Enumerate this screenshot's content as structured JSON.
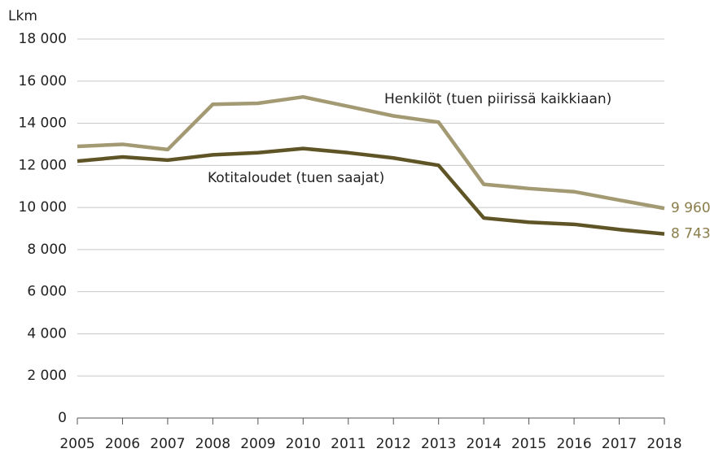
{
  "chart_data": {
    "type": "line",
    "y_label": "Lkm",
    "categories": [
      "2005",
      "2006",
      "2007",
      "2008",
      "2009",
      "2010",
      "2011",
      "2012",
      "2013",
      "2014",
      "2015",
      "2016",
      "2017",
      "2018"
    ],
    "series": [
      {
        "name": "Henkilöt (tuen piirissä kaikkiaan)",
        "color": "#a39a73",
        "values": [
          12900,
          13000,
          12750,
          14900,
          14950,
          15250,
          14800,
          14350,
          14050,
          11100,
          10900,
          10750,
          10350,
          9960
        ],
        "value_labels": [
          null,
          null,
          null,
          null,
          null,
          null,
          null,
          null,
          null,
          null,
          null,
          null,
          null,
          "9 960"
        ]
      },
      {
        "name": "Kotitaloudet (tuen saajat)",
        "color": "#5e5426",
        "values": [
          12200,
          12400,
          12250,
          12500,
          12600,
          12800,
          12600,
          12350,
          12000,
          9500,
          9300,
          9200,
          8950,
          8743
        ],
        "value_labels": [
          null,
          null,
          null,
          null,
          null,
          null,
          null,
          null,
          null,
          null,
          null,
          null,
          null,
          "8 743"
        ]
      }
    ],
    "ylim": [
      0,
      18000
    ],
    "yticks": [
      0,
      {
        "value": 2000,
        "label": "2 000"
      },
      {
        "value": 4000,
        "label": "4 000"
      },
      {
        "value": 6000,
        "label": "6 000"
      },
      {
        "value": 8000,
        "label": "8 000"
      },
      {
        "value": 10000,
        "label": "10 000"
      },
      {
        "value": 12000,
        "label": "12 000"
      },
      {
        "value": 14000,
        "label": "14 000"
      },
      {
        "value": 16000,
        "label": "16 000"
      },
      {
        "value": 18000,
        "label": "18 000"
      }
    ],
    "grid": true
  }
}
